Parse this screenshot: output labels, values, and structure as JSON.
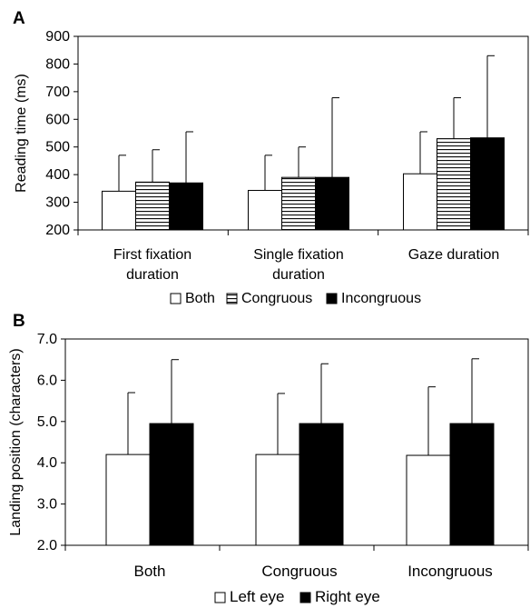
{
  "chart_data": [
    {
      "panel_label": "A",
      "type": "bar",
      "ylabel": "Reading time (ms)",
      "ylim": [
        200,
        900
      ],
      "yticks": [
        "200",
        "300",
        "400",
        "500",
        "600",
        "700",
        "800",
        "900"
      ],
      "categories": [
        [
          "First fixation",
          "duration"
        ],
        [
          "Single fixation",
          "duration"
        ],
        [
          "Gaze duration"
        ]
      ],
      "series": [
        {
          "name": "Both",
          "fill": "white",
          "values": [
            340,
            343,
            403
          ],
          "error_upper": [
            470,
            470,
            555
          ]
        },
        {
          "name": "Congruous",
          "fill": "hlines",
          "values": [
            373,
            390,
            530
          ],
          "error_upper": [
            490,
            500,
            678
          ]
        },
        {
          "name": "Incongruous",
          "fill": "black",
          "values": [
            370,
            390,
            533
          ],
          "error_upper": [
            555,
            678,
            830
          ]
        }
      ],
      "legend_position": "bottom-center"
    },
    {
      "panel_label": "B",
      "type": "bar",
      "ylabel": "Landing position (characters)",
      "ylim": [
        2.0,
        7.0
      ],
      "yticks": [
        "2.0",
        "3.0",
        "4.0",
        "5.0",
        "6.0",
        "7.0"
      ],
      "categories": [
        [
          "Both"
        ],
        [
          "Congruous"
        ],
        [
          "Incongruous"
        ]
      ],
      "series": [
        {
          "name": "Left eye",
          "fill": "white",
          "values": [
            4.2,
            4.2,
            4.18
          ],
          "error_upper": [
            5.7,
            5.68,
            5.84
          ]
        },
        {
          "name": "Right eye",
          "fill": "black",
          "values": [
            4.95,
            4.95,
            4.95
          ],
          "error_upper": [
            6.5,
            6.4,
            6.52
          ]
        }
      ],
      "legend_position": "bottom-center"
    }
  ]
}
